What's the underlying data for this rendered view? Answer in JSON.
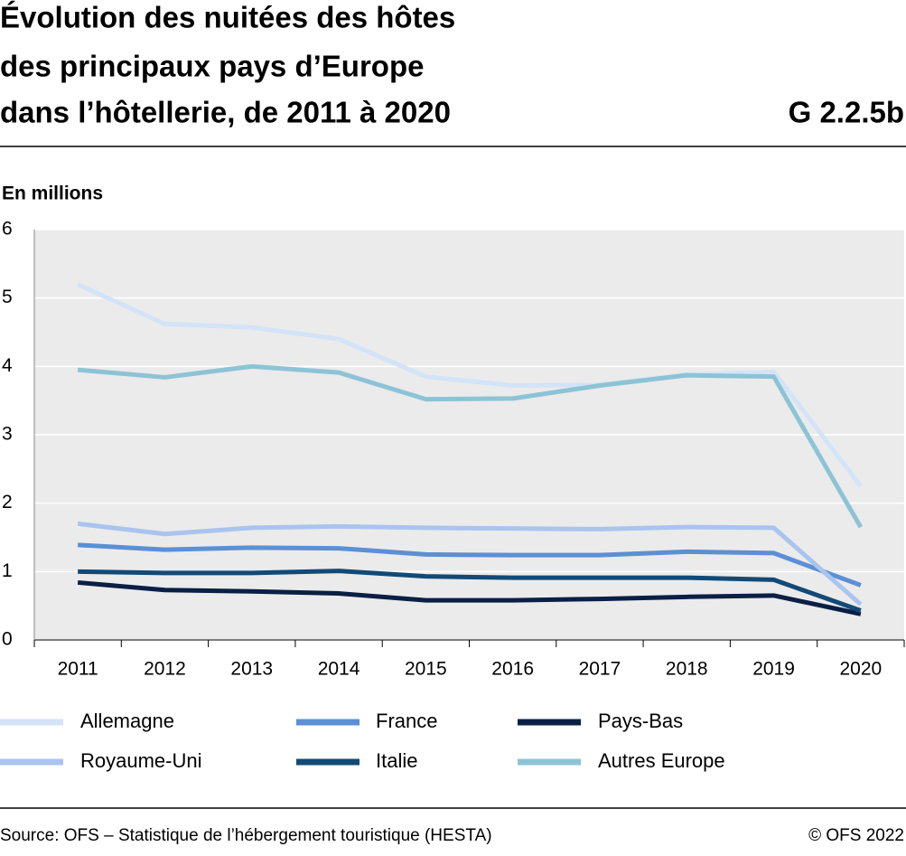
{
  "chart_data": {
    "type": "line",
    "title": [
      "Évolution des nuitées des hôtes",
      "des principaux pays d’Europe",
      "dans l’hôtellerie, de 2011 à 2020"
    ],
    "chart_id": "G 2.2.5b",
    "y_label": "En millions",
    "categories": [
      "2011",
      "2012",
      "2013",
      "2014",
      "2015",
      "2016",
      "2017",
      "2018",
      "2019",
      "2020"
    ],
    "ylim": [
      0,
      6
    ],
    "yticks": [
      0,
      1,
      2,
      3,
      4,
      5,
      6
    ],
    "grid": true,
    "series": [
      {
        "name": "Allemagne",
        "color": "#d3e3f8",
        "values": [
          5.2,
          4.62,
          4.57,
          4.4,
          3.85,
          3.72,
          3.73,
          3.88,
          3.92,
          2.25
        ]
      },
      {
        "name": "France",
        "color": "#5b8fd6",
        "values": [
          1.39,
          1.32,
          1.35,
          1.34,
          1.25,
          1.24,
          1.24,
          1.29,
          1.27,
          0.8
        ]
      },
      {
        "name": "Pays-Bas",
        "color": "#0a1f44",
        "values": [
          0.84,
          0.73,
          0.71,
          0.68,
          0.58,
          0.58,
          0.6,
          0.63,
          0.65,
          0.38
        ]
      },
      {
        "name": "Royaume-Uni",
        "color": "#a9c4ee",
        "values": [
          1.7,
          1.55,
          1.64,
          1.66,
          1.64,
          1.63,
          1.62,
          1.65,
          1.64,
          0.52
        ]
      },
      {
        "name": "Italie",
        "color": "#124a77",
        "values": [
          1.0,
          0.98,
          0.98,
          1.01,
          0.93,
          0.91,
          0.91,
          0.91,
          0.88,
          0.43
        ]
      },
      {
        "name": "Autres Europe",
        "color": "#8dc3d6",
        "values": [
          3.95,
          3.84,
          4.0,
          3.91,
          3.52,
          3.53,
          3.72,
          3.87,
          3.85,
          1.65
        ]
      }
    ],
    "source": "Source: OFS – Statistique de l’hébergement touristique (HESTA)",
    "copyright": "© OFS 2022"
  }
}
